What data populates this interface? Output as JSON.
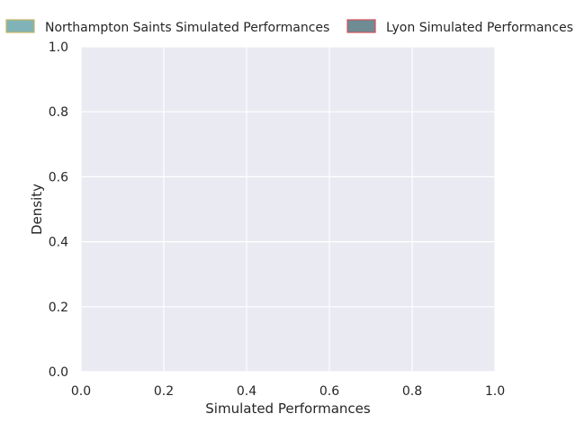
{
  "chart_data": {
    "type": "area",
    "title": "",
    "xlabel": "Simulated Performances",
    "ylabel": "Density",
    "xlim": [
      0,
      1
    ],
    "ylim": [
      0,
      1
    ],
    "x_ticks": [
      "0.0",
      "0.2",
      "0.4",
      "0.6",
      "0.8",
      "1.0"
    ],
    "y_ticks": [
      "0.0",
      "0.2",
      "0.4",
      "0.6",
      "0.8",
      "1.0"
    ],
    "grid": true,
    "legend_position": "top",
    "background_color": "#eaeaf2",
    "grid_color": "#ffffff",
    "series": [
      {
        "name": "Northampton Saints Simulated Performances",
        "fill_color": "#7fb3b8",
        "edge_color": "#c8b560",
        "values": []
      },
      {
        "name": "Lyon Simulated Performances",
        "fill_color": "#6f8c94",
        "edge_color": "#d0525a",
        "values": []
      }
    ]
  }
}
